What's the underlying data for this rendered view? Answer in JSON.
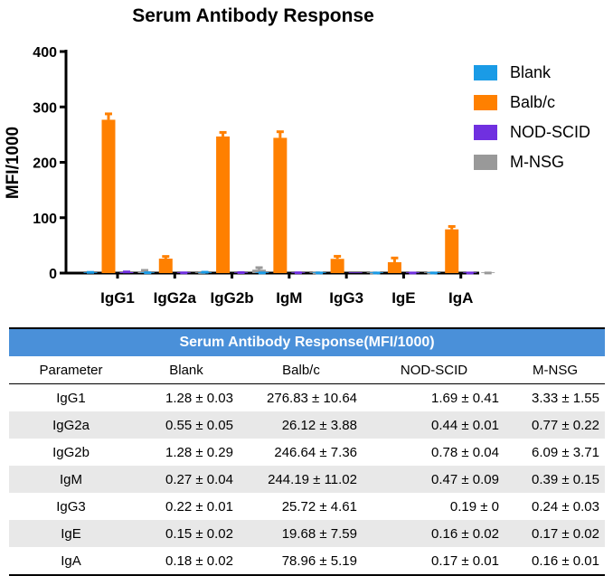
{
  "chart_data": {
    "type": "bar",
    "title": "Serum Antibody Response",
    "ylabel": "MFI/1000",
    "xlabel": "",
    "ylim": [
      0,
      400
    ],
    "yticks": [
      0,
      100,
      200,
      300,
      400
    ],
    "categories": [
      "IgG1",
      "IgG2a",
      "IgG2b",
      "IgM",
      "IgG3",
      "IgE",
      "IgA"
    ],
    "legend_position": "top-right",
    "series": [
      {
        "name": "Blank",
        "color": "#1a9be6",
        "values": [
          1.28,
          0.55,
          1.28,
          0.27,
          0.22,
          0.15,
          0.18
        ],
        "errors": [
          0.03,
          0.05,
          0.29,
          0.04,
          0.01,
          0.02,
          0.02
        ]
      },
      {
        "name": "Balb/c",
        "color": "#ff8000",
        "values": [
          276.83,
          26.12,
          246.64,
          244.19,
          25.72,
          19.68,
          78.96
        ],
        "errors": [
          10.64,
          3.88,
          7.36,
          11.02,
          4.61,
          7.59,
          5.19
        ]
      },
      {
        "name": "NOD-SCID",
        "color": "#7030e0",
        "values": [
          1.69,
          0.44,
          0.78,
          0.47,
          0.19,
          0.16,
          0.17
        ],
        "errors": [
          0.41,
          0.01,
          0.04,
          0.09,
          0,
          0.02,
          0.01
        ]
      },
      {
        "name": "M-NSG",
        "color": "#999999",
        "values": [
          3.33,
          0.77,
          6.09,
          0.39,
          0.24,
          0.17,
          0.16
        ],
        "errors": [
          1.55,
          0.22,
          3.71,
          0.15,
          0.03,
          0.02,
          0.01
        ]
      }
    ]
  },
  "table": {
    "title": "Serum Antibody Response(MFI/1000)",
    "header": [
      "Parameter",
      "Blank",
      "Balb/c",
      "NOD-SCID",
      "M-NSG"
    ],
    "rows": [
      [
        "IgG1",
        "1.28 ± 0.03",
        "276.83 ± 10.64",
        "1.69 ± 0.41",
        "3.33 ± 1.55"
      ],
      [
        "IgG2a",
        "0.55 ± 0.05",
        "26.12 ± 3.88",
        "0.44 ± 0.01",
        "0.77 ± 0.22"
      ],
      [
        "IgG2b",
        "1.28 ± 0.29",
        "246.64 ± 7.36",
        "0.78 ± 0.04",
        "6.09 ± 3.71"
      ],
      [
        "IgM",
        "0.27 ± 0.04",
        "244.19 ± 11.02",
        "0.47 ± 0.09",
        "0.39 ± 0.15"
      ],
      [
        "IgG3",
        "0.22 ± 0.01",
        "25.72 ± 4.61",
        "0.19 ± 0",
        "0.24 ± 0.03"
      ],
      [
        "IgE",
        "0.15 ± 0.02",
        "19.68 ± 7.59",
        "0.16 ± 0.02",
        "0.17 ± 0.02"
      ],
      [
        "IgA",
        "0.18 ± 0.02",
        "78.96 ± 5.19",
        "0.17 ± 0.01",
        "0.16 ± 0.01"
      ]
    ],
    "header_color": "#4a90d9",
    "shade_color": "#e8e8e8"
  }
}
